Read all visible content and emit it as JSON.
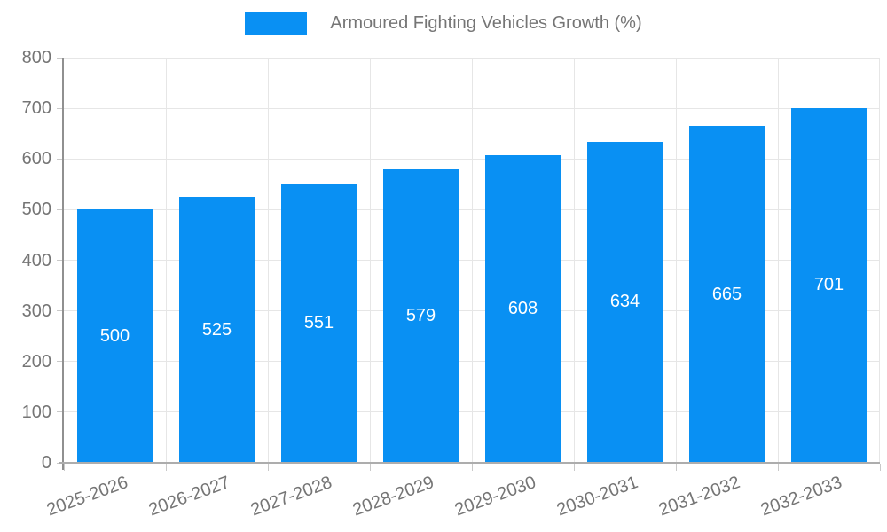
{
  "legend": {
    "label": "Armoured Fighting Vehicles Growth (%)"
  },
  "chart_data": {
    "type": "bar",
    "title": "Armoured Fighting Vehicles Growth (%)",
    "categories": [
      "2025-2026",
      "2026-2027",
      "2027-2028",
      "2028-2029",
      "2029-2030",
      "2030-2031",
      "2031-2032",
      "2032-2033"
    ],
    "values": [
      500,
      525,
      551,
      579,
      608,
      634,
      665,
      701
    ],
    "xlabel": "",
    "ylabel": "",
    "ylim": [
      0,
      800
    ],
    "yticks": [
      0,
      100,
      200,
      300,
      400,
      500,
      600,
      700,
      800
    ],
    "grid": true,
    "legend_position": "top",
    "colors": {
      "bar": "#0990f3",
      "value_label": "#ffffff",
      "axis_text": "#757575",
      "gridline": "#e6e6e6",
      "axis_line": "#909090"
    }
  }
}
